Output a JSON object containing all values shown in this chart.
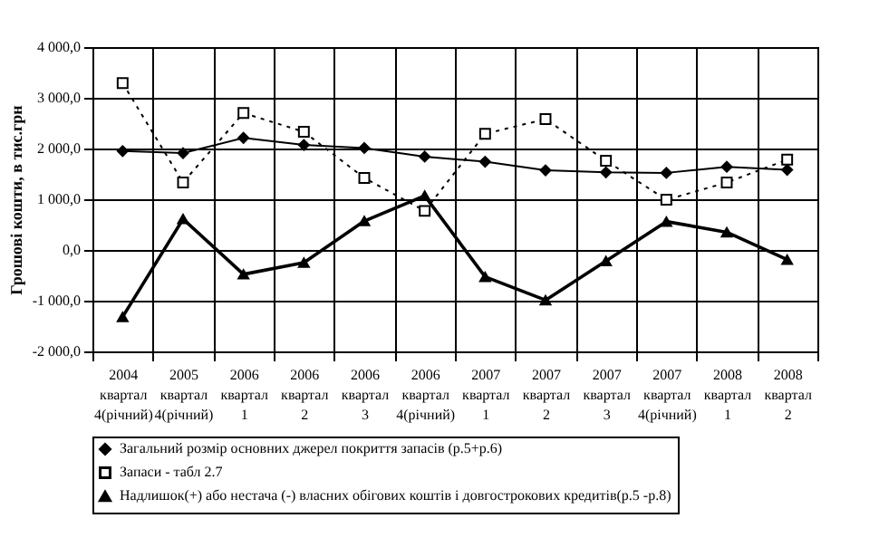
{
  "chart_data": {
    "type": "line",
    "ylabel": "Грошові кошти, в тис.грн",
    "categories": [
      "2004\nквартал\n4(річний)",
      "2005\nквартал\n4(річний)",
      "2006\nквартал\n1",
      "2006\nквартал\n2",
      "2006\nквартал\n3",
      "2006\nквартал\n4(річний)",
      "2007\nквартал\n1",
      "2007\nквартал\n2",
      "2007\nквартал\n3",
      "2007\nквартал\n4(річний)",
      "2008\nквартал\n1",
      "2008\nквартал\n2"
    ],
    "series": [
      {
        "name": "Загальний розмір основних джерел покриття запасів (р.5+р.6)",
        "color": "#000000",
        "marker": "diamond",
        "line_style": "solid",
        "values": [
          1950,
          1910,
          2210,
          2070,
          2010,
          1840,
          1740,
          1570,
          1530,
          1520,
          1640,
          1580
        ]
      },
      {
        "name": "Запаси - табл 2.7",
        "color": "#000000",
        "marker": "square",
        "line_style": "dotted",
        "values": [
          3290,
          1330,
          2700,
          2330,
          1420,
          770,
          2290,
          2580,
          1760,
          990,
          1330,
          1780
        ]
      },
      {
        "name": "Надлишок(+) або нестача (-) власних обігових коштів і довгострокових кредитів(р.5 -р.8)",
        "color": "#000000",
        "marker": "triangle",
        "line_style": "solid",
        "values": [
          -1320,
          610,
          -480,
          -250,
          570,
          1070,
          -530,
          -990,
          -220,
          560,
          350,
          -190
        ]
      }
    ],
    "ylim": [
      -2000,
      4000
    ],
    "yticks": [
      {
        "value": -2000,
        "label": "-2 000,0"
      },
      {
        "value": -1000,
        "label": "-1 000,0"
      },
      {
        "value": 0,
        "label": "0,0"
      },
      {
        "value": 1000,
        "label": "1 000,0"
      },
      {
        "value": 2000,
        "label": "2 000,0"
      },
      {
        "value": 3000,
        "label": "3 000,0"
      },
      {
        "value": 4000,
        "label": "4 000,0"
      }
    ],
    "grid": true,
    "legend": "bottom"
  }
}
